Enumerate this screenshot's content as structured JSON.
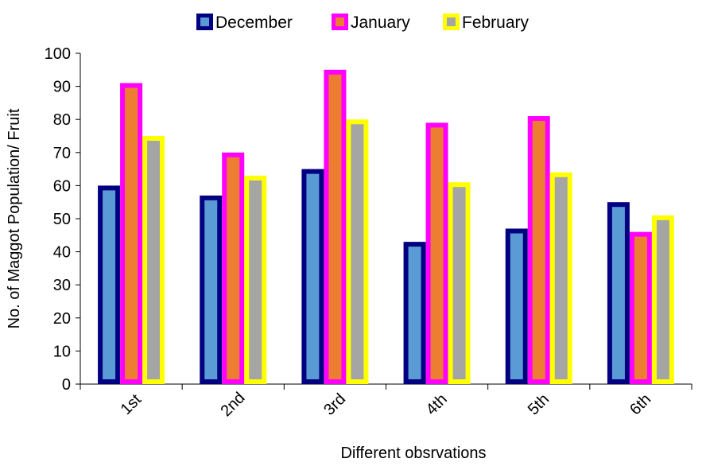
{
  "chart_data": {
    "type": "bar",
    "title": "",
    "xlabel": "Different obsrvations",
    "ylabel": "No. of Maggot Population/ Fruit",
    "categories": [
      "1st",
      "2nd",
      "3rd",
      "4th",
      "5th",
      "6th"
    ],
    "ylim": [
      0,
      100
    ],
    "yticks": [
      0,
      10,
      20,
      30,
      40,
      50,
      60,
      70,
      80,
      90,
      100
    ],
    "grid": false,
    "legend_position": "top",
    "series": [
      {
        "name": "December",
        "values": [
          60,
          57,
          65,
          43,
          47,
          55
        ],
        "fill": "#5B9BD5",
        "border": "#000080"
      },
      {
        "name": "January",
        "values": [
          91,
          70,
          95,
          79,
          81,
          46
        ],
        "fill": "#ED7D31",
        "border": "#FF00FF"
      },
      {
        "name": "February",
        "values": [
          75,
          63,
          80,
          61,
          64,
          51
        ],
        "fill": "#A5A5A5",
        "border": "#FFFF00"
      }
    ]
  }
}
